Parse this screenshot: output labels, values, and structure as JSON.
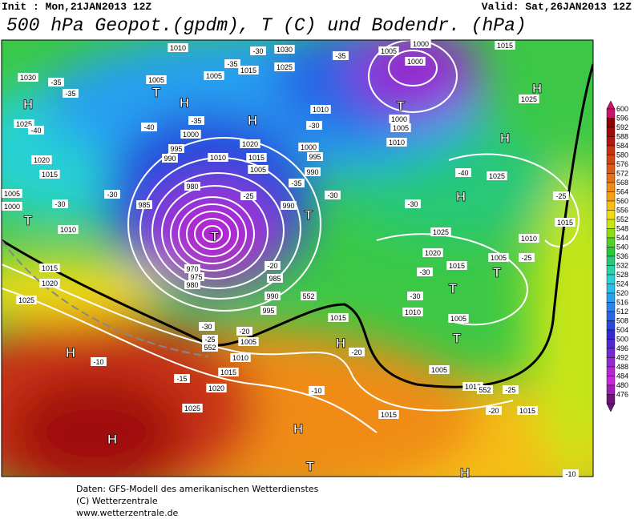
{
  "header": {
    "init": "Init : Mon,21JAN2013 12Z",
    "valid": "Valid: Sat,26JAN2013 12Z",
    "title": "500 hPa Geopot.(gpdm), T (C) und Bodendr. (hPa)"
  },
  "colorbar": {
    "values": [
      600,
      596,
      592,
      588,
      584,
      580,
      576,
      572,
      568,
      564,
      560,
      556,
      552,
      548,
      544,
      540,
      536,
      532,
      528,
      524,
      520,
      516,
      512,
      508,
      504,
      500,
      496,
      492,
      488,
      484,
      480,
      476
    ],
    "colors": [
      "#c8146e",
      "#8c0000",
      "#a00a0a",
      "#b41414",
      "#c83214",
      "#d24614",
      "#dc5a14",
      "#e66e14",
      "#f08c14",
      "#f5a014",
      "#f5be14",
      "#f0dc14",
      "#c8e614",
      "#8cdc14",
      "#50d228",
      "#28c83c",
      "#28c878",
      "#28d2aa",
      "#28d2d2",
      "#28bee6",
      "#28a0f0",
      "#2882f0",
      "#2864e6",
      "#2846dc",
      "#3228d2",
      "#5028d2",
      "#7828d2",
      "#9628d2",
      "#b428d2",
      "#c828dc",
      "#a01eb4",
      "#6e1478"
    ]
  },
  "map": {
    "labels": [
      "H",
      "T",
      "H",
      "H",
      "T",
      "H",
      "H",
      "H",
      "T",
      "T",
      "T",
      "T",
      "T",
      "H",
      "H",
      "H",
      "T",
      "H",
      "H",
      "T",
      "1010",
      "1015",
      "1025",
      "1030",
      "1030",
      "1005",
      "1005",
      "1025",
      "1020",
      "1015",
      "1005",
      "1000",
      "1010",
      "1015",
      "1020",
      "1025",
      "1000",
      "995",
      "990",
      "1010",
      "1020",
      "1015",
      "1005",
      "1000",
      "995",
      "990",
      "985",
      "980",
      "990",
      "970",
      "975",
      "980",
      "985",
      "990",
      "995",
      "1005",
      "1010",
      "1015",
      "1020",
      "1025",
      "1015",
      "1010",
      "1000",
      "1005",
      "1010",
      "1000",
      "1005",
      "1000",
      "1015",
      "1025",
      "1025",
      "1025",
      "1020",
      "1015",
      "1010",
      "1005",
      "1005",
      "1010",
      "1015",
      "1015",
      "1010",
      "1005",
      "1015",
      "-35",
      "-35",
      "-40",
      "-40",
      "-35",
      "-30",
      "-35",
      "-35",
      "-30",
      "-40",
      "-30",
      "-35",
      "-30",
      "-25",
      "-25",
      "-30",
      "-30",
      "-20",
      "-25",
      "-20",
      "-30",
      "-10",
      "-15",
      "-20",
      "-10",
      "-25",
      "-20",
      "-10",
      "-25",
      "-30",
      "-30",
      "552",
      "552",
      "552"
    ]
  },
  "footer": [
    "Daten: GFS-Modell des amerikanischen Wetterdienstes",
    "(C) Wetterzentrale",
    "www.wetterzentrale.de"
  ]
}
